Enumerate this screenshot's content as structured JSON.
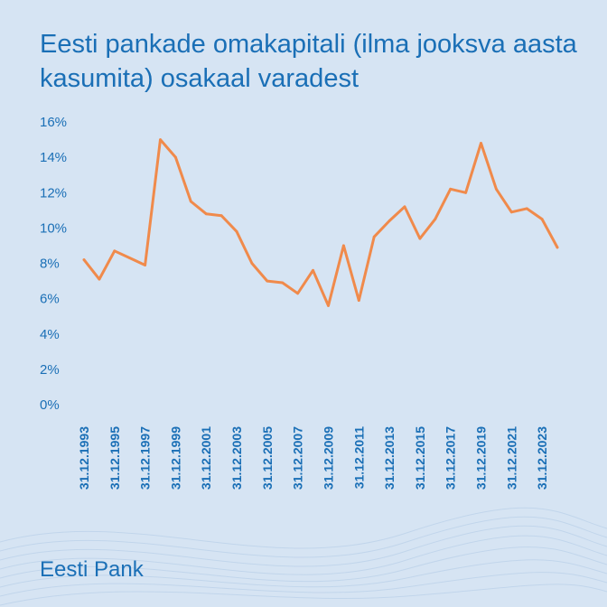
{
  "title": "Eesti pankade omakapitali (ilma jooksva aasta kasumita) osakaal varadest",
  "brand": "Eesti Pank",
  "colors": {
    "background": "#d6e4f3",
    "text": "#1a6fb6",
    "line": "#f08a4b"
  },
  "chart_data": {
    "type": "line",
    "title": "Eesti pankade omakapitali (ilma jooksva aasta kasumita) osakaal varadest",
    "xlabel": "",
    "ylabel": "",
    "ylim": [
      0,
      16
    ],
    "yticks": [
      "0%",
      "2%",
      "4%",
      "6%",
      "8%",
      "10%",
      "12%",
      "14%",
      "16%"
    ],
    "grid": false,
    "x": [
      "31.12.1993",
      "31.12.1994",
      "31.12.1995",
      "31.12.1996",
      "31.12.1997",
      "31.12.1998",
      "31.12.1999",
      "31.12.2000",
      "31.12.2001",
      "31.12.2002",
      "31.12.2003",
      "31.12.2004",
      "31.12.2005",
      "31.12.2006",
      "31.12.2007",
      "31.12.2008",
      "31.12.2009",
      "31.12.2010",
      "31.12.2011",
      "31.12.2012",
      "31.12.2013",
      "31.12.2014",
      "31.12.2015",
      "31.12.2016",
      "31.12.2017",
      "31.12.2018",
      "31.12.2019",
      "31.12.2020",
      "31.12.2021",
      "31.12.2022",
      "31.12.2023",
      "31.12.2024"
    ],
    "xtick_labels": [
      "31.12.1993",
      "31.12.1995",
      "31.12.1997",
      "31.12.1999",
      "31.12.2001",
      "31.12.2003",
      "31.12.2005",
      "31.12.2007",
      "31.12.2009",
      "31.12.2011",
      "31.12.2013",
      "31.12.2015",
      "31.12.2017",
      "31.12.2019",
      "31.12.2021",
      "31.12.2023"
    ],
    "series": [
      {
        "values": [
          8.2,
          7.1,
          8.7,
          8.3,
          7.9,
          15.0,
          14.0,
          11.5,
          10.8,
          10.7,
          9.8,
          8.0,
          7.0,
          6.9,
          6.3,
          7.6,
          5.6,
          9.0,
          5.9,
          9.5,
          10.4,
          11.2,
          9.4,
          10.5,
          12.2,
          12.0,
          14.8,
          12.2,
          10.9,
          11.1,
          10.5,
          8.9
        ]
      }
    ]
  }
}
